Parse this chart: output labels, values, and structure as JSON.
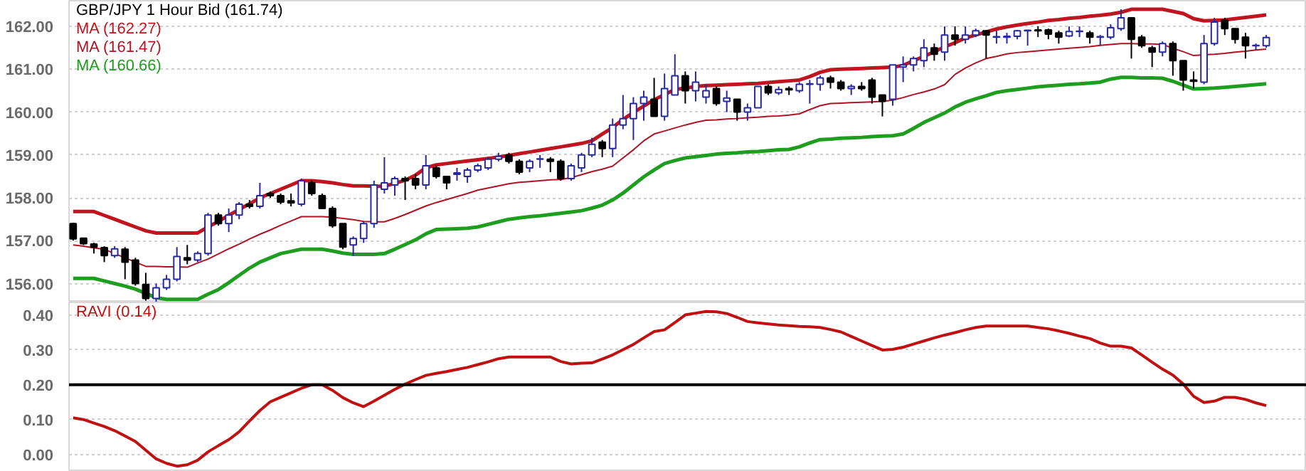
{
  "chart_data": [
    {
      "type": "candlestick",
      "title": "GBP/JPY 1 Hour Bid (161.74)",
      "legend": "top left",
      "grid": "y",
      "tick_labels": "y",
      "categories": [
        null,
        null,
        null,
        null,
        null,
        null,
        null,
        null,
        null,
        null,
        null,
        null,
        null,
        null,
        null,
        null,
        null,
        null,
        null,
        null,
        null,
        null,
        null,
        null,
        null,
        null,
        null,
        null,
        null,
        null,
        null,
        null,
        null,
        null,
        null,
        null,
        null,
        null,
        null,
        null,
        null,
        null,
        null,
        null,
        null,
        null,
        null,
        null,
        null,
        null,
        null,
        null,
        null,
        null,
        null,
        null,
        null,
        null,
        null,
        null,
        null,
        null,
        null,
        null,
        null,
        null,
        null,
        null,
        null,
        null,
        null,
        null,
        null,
        null,
        null,
        null,
        null,
        null,
        null,
        null,
        null,
        null,
        null,
        null,
        null,
        null,
        null,
        null,
        null,
        null,
        null,
        null,
        null,
        null,
        null,
        null,
        null,
        null,
        null,
        null,
        null,
        null,
        null,
        null,
        null,
        null,
        null,
        null,
        null,
        null,
        null,
        null,
        null,
        null,
        null,
        null
      ],
      "ylim": [
        155.56,
        162.6
      ],
      "yticks": [
        {
          "value": 156,
          "label": "156.00"
        },
        {
          "value": 157,
          "label": "157.00"
        },
        {
          "value": 158,
          "label": "158.00"
        },
        {
          "value": 159,
          "label": "159.00"
        },
        {
          "value": 160,
          "label": "160.00"
        },
        {
          "value": 161,
          "label": "161.00"
        },
        {
          "value": 162,
          "label": "162.00"
        }
      ],
      "ohlc": [
        [
          157.4,
          157.42,
          157.0,
          157.04
        ],
        [
          157.06,
          157.07,
          156.9,
          156.93
        ],
        [
          156.92,
          156.95,
          156.7,
          156.85
        ],
        [
          156.84,
          156.87,
          156.5,
          156.65
        ],
        [
          156.65,
          156.87,
          156.6,
          156.81
        ],
        [
          156.8,
          156.85,
          156.1,
          156.5
        ],
        [
          156.55,
          156.6,
          155.95,
          156.0
        ],
        [
          155.98,
          156.25,
          155.6,
          155.65
        ],
        [
          155.65,
          156.0,
          155.55,
          155.9
        ],
        [
          155.9,
          156.2,
          155.85,
          156.1
        ],
        [
          156.1,
          156.85,
          156.05,
          156.63
        ],
        [
          156.6,
          156.9,
          156.45,
          156.55
        ],
        [
          156.55,
          156.75,
          156.5,
          156.7
        ],
        [
          156.7,
          157.65,
          156.65,
          157.6
        ],
        [
          157.6,
          157.65,
          157.35,
          157.4
        ],
        [
          157.4,
          157.75,
          157.2,
          157.6
        ],
        [
          157.6,
          157.9,
          157.5,
          157.85
        ],
        [
          157.85,
          157.95,
          157.75,
          157.8
        ],
        [
          157.8,
          158.35,
          157.75,
          158.05
        ],
        [
          158.1,
          158.15,
          158.0,
          158.05
        ],
        [
          158.05,
          158.1,
          157.85,
          157.9
        ],
        [
          157.93,
          158.1,
          157.8,
          157.88
        ],
        [
          157.85,
          158.45,
          157.8,
          158.4
        ],
        [
          158.35,
          158.4,
          158.05,
          158.1
        ],
        [
          158.05,
          158.1,
          157.75,
          157.75
        ],
        [
          157.75,
          157.8,
          157.3,
          157.35
        ],
        [
          157.4,
          157.4,
          156.8,
          156.85
        ],
        [
          156.9,
          157.1,
          156.65,
          157.05
        ],
        [
          157.05,
          157.45,
          156.95,
          157.4
        ],
        [
          157.4,
          158.4,
          157.3,
          158.3
        ],
        [
          158.2,
          158.95,
          158.1,
          158.35
        ],
        [
          158.3,
          158.5,
          158.05,
          158.45
        ],
        [
          158.45,
          158.5,
          157.95,
          158.4
        ],
        [
          158.45,
          158.55,
          158.2,
          158.3
        ],
        [
          158.3,
          159.0,
          158.2,
          158.75
        ],
        [
          158.7,
          158.75,
          158.45,
          158.5
        ],
        [
          158.5,
          158.5,
          158.2,
          158.35
        ],
        [
          158.55,
          158.7,
          158.4,
          158.58
        ],
        [
          158.5,
          158.7,
          158.35,
          158.65
        ],
        [
          158.65,
          158.8,
          158.6,
          158.75
        ],
        [
          158.7,
          158.95,
          158.65,
          158.9
        ],
        [
          158.9,
          159.05,
          158.85,
          158.97
        ],
        [
          159.0,
          159.05,
          158.8,
          158.85
        ],
        [
          158.85,
          158.9,
          158.55,
          158.6
        ],
        [
          158.7,
          158.9,
          158.6,
          158.85
        ],
        [
          158.9,
          159.0,
          158.7,
          158.91
        ],
        [
          158.9,
          158.95,
          158.6,
          158.85
        ],
        [
          158.85,
          158.9,
          158.4,
          158.45
        ],
        [
          158.45,
          158.8,
          158.4,
          158.75
        ],
        [
          158.7,
          159.05,
          158.6,
          159.0
        ],
        [
          159.0,
          159.4,
          158.95,
          159.25
        ],
        [
          159.3,
          159.35,
          158.95,
          159.15
        ],
        [
          159.15,
          159.85,
          158.95,
          159.7
        ],
        [
          159.7,
          160.4,
          159.6,
          159.85
        ],
        [
          159.85,
          160.35,
          159.35,
          160.2
        ],
        [
          160.2,
          160.5,
          159.8,
          160.35
        ],
        [
          160.3,
          160.8,
          159.9,
          159.9
        ],
        [
          159.9,
          160.9,
          159.8,
          160.55
        ],
        [
          160.4,
          161.35,
          160.4,
          160.85
        ],
        [
          160.85,
          160.95,
          160.2,
          160.5
        ],
        [
          160.5,
          160.95,
          160.25,
          160.7
        ],
        [
          160.35,
          160.65,
          160.2,
          160.5
        ],
        [
          160.55,
          160.6,
          160.15,
          160.2
        ],
        [
          160.25,
          160.5,
          160.0,
          160.33
        ],
        [
          160.3,
          160.3,
          159.8,
          160.0
        ],
        [
          160.0,
          160.2,
          159.8,
          160.1
        ],
        [
          160.1,
          160.6,
          160.1,
          160.6
        ],
        [
          160.6,
          160.65,
          160.4,
          160.45
        ],
        [
          160.45,
          160.6,
          160.4,
          160.53
        ],
        [
          160.55,
          160.6,
          160.4,
          160.52
        ],
        [
          160.5,
          160.7,
          160.45,
          160.65
        ],
        [
          160.65,
          160.75,
          160.2,
          160.66
        ],
        [
          160.65,
          160.85,
          160.5,
          160.8
        ],
        [
          160.8,
          160.85,
          160.55,
          160.7
        ],
        [
          160.7,
          160.75,
          160.5,
          160.55
        ],
        [
          160.55,
          160.65,
          160.4,
          160.6
        ],
        [
          160.6,
          160.7,
          160.5,
          160.55
        ],
        [
          160.75,
          160.8,
          160.2,
          160.35
        ],
        [
          160.4,
          160.4,
          159.9,
          160.25
        ],
        [
          160.3,
          161.1,
          160.15,
          161.1
        ],
        [
          161.05,
          161.3,
          160.7,
          161.1
        ],
        [
          161.1,
          161.3,
          160.95,
          161.25
        ],
        [
          161.2,
          161.7,
          161.05,
          161.5
        ],
        [
          161.5,
          161.6,
          161.2,
          161.35
        ],
        [
          161.4,
          162.0,
          161.2,
          161.8
        ],
        [
          161.8,
          162.0,
          161.55,
          161.7
        ],
        [
          161.7,
          162.0,
          161.6,
          161.8
        ],
        [
          161.8,
          161.95,
          161.75,
          161.9
        ],
        [
          161.9,
          161.9,
          161.25,
          161.8
        ],
        [
          161.75,
          161.9,
          161.6,
          161.76
        ],
        [
          161.75,
          161.85,
          161.6,
          161.77
        ],
        [
          161.77,
          161.92,
          161.7,
          161.9
        ],
        [
          161.9,
          161.92,
          161.55,
          161.91
        ],
        [
          161.92,
          162.0,
          161.75,
          161.9
        ],
        [
          161.92,
          161.95,
          161.7,
          161.82
        ],
        [
          161.85,
          161.9,
          161.6,
          161.75
        ],
        [
          161.78,
          162.0,
          161.75,
          161.88
        ],
        [
          161.88,
          162.0,
          161.75,
          161.89
        ],
        [
          161.85,
          161.9,
          161.6,
          161.75
        ],
        [
          161.75,
          161.8,
          161.55,
          161.76
        ],
        [
          161.75,
          162.05,
          161.7,
          161.97
        ],
        [
          161.95,
          162.4,
          161.9,
          162.2
        ],
        [
          162.2,
          162.2,
          161.25,
          161.7
        ],
        [
          161.75,
          161.8,
          161.5,
          161.55
        ],
        [
          161.5,
          161.55,
          161.05,
          161.4
        ],
        [
          161.4,
          161.65,
          161.3,
          161.6
        ],
        [
          161.6,
          161.65,
          160.85,
          161.2
        ],
        [
          161.2,
          161.2,
          160.5,
          160.75
        ],
        [
          160.75,
          160.95,
          160.55,
          160.72
        ],
        [
          160.7,
          161.8,
          160.65,
          161.6
        ],
        [
          161.6,
          162.2,
          161.55,
          162.1
        ],
        [
          162.15,
          162.2,
          161.8,
          161.95
        ],
        [
          161.95,
          161.95,
          161.6,
          161.7
        ],
        [
          161.75,
          161.85,
          161.25,
          161.55
        ],
        [
          161.55,
          161.6,
          161.45,
          161.56
        ],
        [
          161.55,
          161.8,
          161.5,
          161.74
        ]
      ],
      "series": [
        {
          "name": "MA (162.27)",
          "type": "line",
          "color": "#c0141e",
          "values": [
            157.68,
            157.68,
            157.68,
            157.59,
            157.5,
            157.41,
            157.32,
            157.23,
            157.18,
            157.18,
            157.18,
            157.18,
            157.18,
            157.32,
            157.45,
            157.59,
            157.73,
            157.86,
            158.0,
            158.1,
            158.2,
            158.3,
            158.4,
            158.4,
            158.38,
            158.35,
            158.31,
            158.28,
            158.28,
            158.27,
            158.27,
            158.34,
            158.41,
            158.53,
            158.7,
            158.77,
            158.8,
            158.83,
            158.86,
            158.89,
            158.92,
            158.95,
            158.99,
            159.03,
            159.07,
            159.11,
            159.15,
            159.19,
            159.23,
            159.27,
            159.33,
            159.49,
            159.64,
            159.83,
            159.99,
            160.14,
            160.29,
            160.41,
            160.53,
            160.56,
            160.6,
            160.62,
            160.63,
            160.64,
            160.65,
            160.66,
            160.67,
            160.69,
            160.71,
            160.73,
            160.75,
            160.83,
            160.93,
            160.99,
            161.0,
            161.01,
            161.02,
            161.03,
            161.04,
            161.05,
            161.09,
            161.2,
            161.3,
            161.41,
            161.52,
            161.62,
            161.73,
            161.8,
            161.87,
            161.94,
            161.99,
            162.03,
            162.07,
            162.1,
            162.14,
            162.16,
            162.19,
            162.21,
            162.24,
            162.26,
            162.29,
            162.33,
            162.4,
            162.4,
            162.4,
            162.4,
            162.35,
            162.3,
            162.18,
            162.13,
            162.14,
            162.15,
            162.18,
            162.21,
            162.24,
            162.27
          ]
        },
        {
          "name": "MA (161.47)",
          "type": "line",
          "color": "#b01424",
          "values": [
            156.9,
            156.87,
            156.83,
            156.8,
            156.7,
            156.6,
            156.5,
            156.4,
            156.4,
            156.39,
            156.39,
            156.38,
            156.48,
            156.57,
            156.69,
            156.81,
            156.92,
            157.04,
            157.15,
            157.25,
            157.36,
            157.46,
            157.56,
            157.56,
            157.56,
            157.55,
            157.52,
            157.49,
            157.45,
            157.44,
            157.44,
            157.52,
            157.61,
            157.71,
            157.81,
            157.89,
            157.96,
            158.03,
            158.1,
            158.18,
            158.23,
            158.28,
            158.33,
            158.36,
            158.38,
            158.4,
            158.42,
            158.43,
            158.47,
            158.54,
            158.61,
            158.67,
            158.74,
            158.93,
            159.12,
            159.33,
            159.49,
            159.56,
            159.63,
            159.7,
            159.76,
            159.81,
            159.82,
            159.84,
            159.85,
            159.87,
            159.88,
            159.9,
            159.91,
            159.93,
            159.96,
            160.06,
            160.15,
            160.2,
            160.21,
            160.22,
            160.23,
            160.24,
            160.25,
            160.28,
            160.34,
            160.41,
            160.47,
            160.54,
            160.64,
            160.88,
            161.03,
            161.15,
            161.25,
            161.3,
            161.36,
            161.39,
            161.41,
            161.43,
            161.45,
            161.47,
            161.49,
            161.51,
            161.53,
            161.56,
            161.58,
            161.6,
            161.6,
            161.59,
            161.59,
            161.58,
            161.49,
            161.41,
            161.32,
            161.34,
            161.35,
            161.37,
            161.4,
            161.42,
            161.45,
            161.47
          ]
        },
        {
          "name": "MA (160.66)",
          "type": "line",
          "color": "#1e9e1e",
          "values": [
            156.12,
            156.12,
            156.12,
            156.06,
            156.0,
            155.94,
            155.87,
            155.77,
            155.67,
            155.63,
            155.63,
            155.63,
            155.63,
            155.75,
            155.86,
            156.02,
            156.19,
            156.36,
            156.5,
            156.6,
            156.7,
            156.75,
            156.8,
            156.8,
            156.8,
            156.76,
            156.71,
            156.68,
            156.68,
            156.68,
            156.7,
            156.8,
            156.91,
            157.02,
            157.16,
            157.26,
            157.27,
            157.28,
            157.29,
            157.32,
            157.38,
            157.44,
            157.5,
            157.53,
            157.56,
            157.58,
            157.61,
            157.64,
            157.67,
            157.7,
            157.76,
            157.83,
            157.95,
            158.11,
            158.3,
            158.49,
            158.65,
            158.8,
            158.87,
            158.93,
            158.96,
            158.99,
            159.02,
            159.04,
            159.05,
            159.07,
            159.08,
            159.1,
            159.12,
            159.13,
            159.19,
            159.28,
            159.36,
            159.37,
            159.39,
            159.4,
            159.41,
            159.43,
            159.44,
            159.45,
            159.49,
            159.62,
            159.76,
            159.87,
            159.98,
            160.12,
            160.23,
            160.31,
            160.38,
            160.46,
            160.5,
            160.53,
            160.56,
            160.59,
            160.61,
            160.63,
            160.65,
            160.66,
            160.68,
            160.7,
            160.77,
            160.81,
            160.81,
            160.8,
            160.8,
            160.79,
            160.72,
            160.63,
            160.54,
            160.55,
            160.56,
            160.58,
            160.6,
            160.62,
            160.64,
            160.66
          ]
        }
      ]
    },
    {
      "type": "line",
      "legend": "top left",
      "grid": "y",
      "tick_labels": "y",
      "categories": [
        null,
        null,
        null,
        null,
        null,
        null,
        null,
        null,
        null,
        null,
        null,
        null,
        null,
        null,
        null,
        null,
        null,
        null,
        null,
        null,
        null,
        null,
        null,
        null,
        null,
        null,
        null,
        null,
        null,
        null,
        null,
        null,
        null,
        null,
        null,
        null,
        null,
        null,
        null,
        null,
        null,
        null,
        null,
        null,
        null,
        null,
        null,
        null,
        null,
        null,
        null,
        null,
        null,
        null,
        null,
        null,
        null,
        null,
        null,
        null,
        null,
        null,
        null,
        null,
        null,
        null,
        null,
        null,
        null,
        null,
        null,
        null,
        null,
        null,
        null,
        null,
        null,
        null,
        null,
        null,
        null,
        null,
        null,
        null,
        null,
        null,
        null,
        null,
        null,
        null,
        null,
        null,
        null,
        null,
        null,
        null,
        null,
        null,
        null,
        null,
        null,
        null,
        null,
        null,
        null,
        null,
        null,
        null,
        null,
        null,
        null,
        null,
        null,
        null,
        null,
        null
      ],
      "ylim": [
        -0.05,
        0.437
      ],
      "yticks": [
        {
          "value": 0,
          "label": "0.00"
        },
        {
          "value": 0.1,
          "label": "0.10"
        },
        {
          "value": 0.2,
          "label": "0.20"
        },
        {
          "value": 0.3,
          "label": "0.30"
        },
        {
          "value": 0.4,
          "label": "0.40"
        }
      ],
      "ref_lines": [
        {
          "axis": "y",
          "value": 0.2,
          "color": "#000000"
        }
      ],
      "series": [
        {
          "name": "RAVI (0.14)",
          "color": "#c01010",
          "values": [
            0.105,
            0.1,
            0.09,
            0.08,
            0.068,
            0.053,
            0.037,
            0.012,
            -0.013,
            -0.026,
            -0.034,
            -0.03,
            -0.017,
            0.007,
            0.025,
            0.042,
            0.065,
            0.096,
            0.126,
            0.151,
            0.164,
            0.177,
            0.19,
            0.2,
            0.2,
            0.184,
            0.163,
            0.148,
            0.137,
            0.153,
            0.17,
            0.187,
            0.202,
            0.215,
            0.227,
            0.233,
            0.238,
            0.244,
            0.25,
            0.258,
            0.266,
            0.275,
            0.28,
            0.28,
            0.28,
            0.28,
            0.28,
            0.267,
            0.26,
            0.262,
            0.263,
            0.274,
            0.286,
            0.301,
            0.316,
            0.335,
            0.353,
            0.358,
            0.379,
            0.401,
            0.406,
            0.411,
            0.41,
            0.405,
            0.394,
            0.382,
            0.378,
            0.375,
            0.372,
            0.37,
            0.368,
            0.367,
            0.365,
            0.359,
            0.352,
            0.339,
            0.326,
            0.313,
            0.3,
            0.302,
            0.308,
            0.317,
            0.326,
            0.335,
            0.343,
            0.35,
            0.358,
            0.365,
            0.369,
            0.369,
            0.369,
            0.369,
            0.369,
            0.365,
            0.361,
            0.355,
            0.348,
            0.34,
            0.333,
            0.32,
            0.311,
            0.311,
            0.306,
            0.286,
            0.265,
            0.245,
            0.228,
            0.202,
            0.167,
            0.149,
            0.153,
            0.164,
            0.164,
            0.158,
            0.148,
            0.14
          ]
        }
      ]
    }
  ]
}
